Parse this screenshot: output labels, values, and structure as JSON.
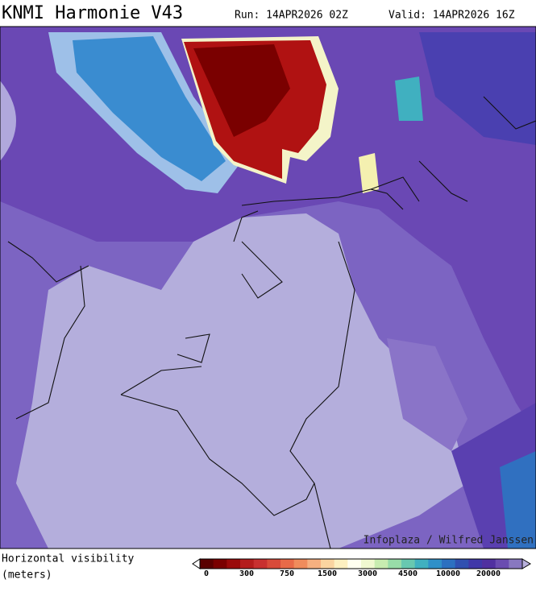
{
  "header": {
    "title": "KNMI Harmonie V43",
    "run": "Run: 14APR2026 02Z",
    "valid": "Valid: 14APR2026 16Z"
  },
  "map": {
    "credit": "Infoplaza / Wilfred Janssen"
  },
  "legend": {
    "label": [
      "Horizontal visibility",
      "(meters)"
    ],
    "ticks": [
      0,
      300,
      750,
      1500,
      3000,
      4500,
      10000,
      20000
    ]
  }
}
